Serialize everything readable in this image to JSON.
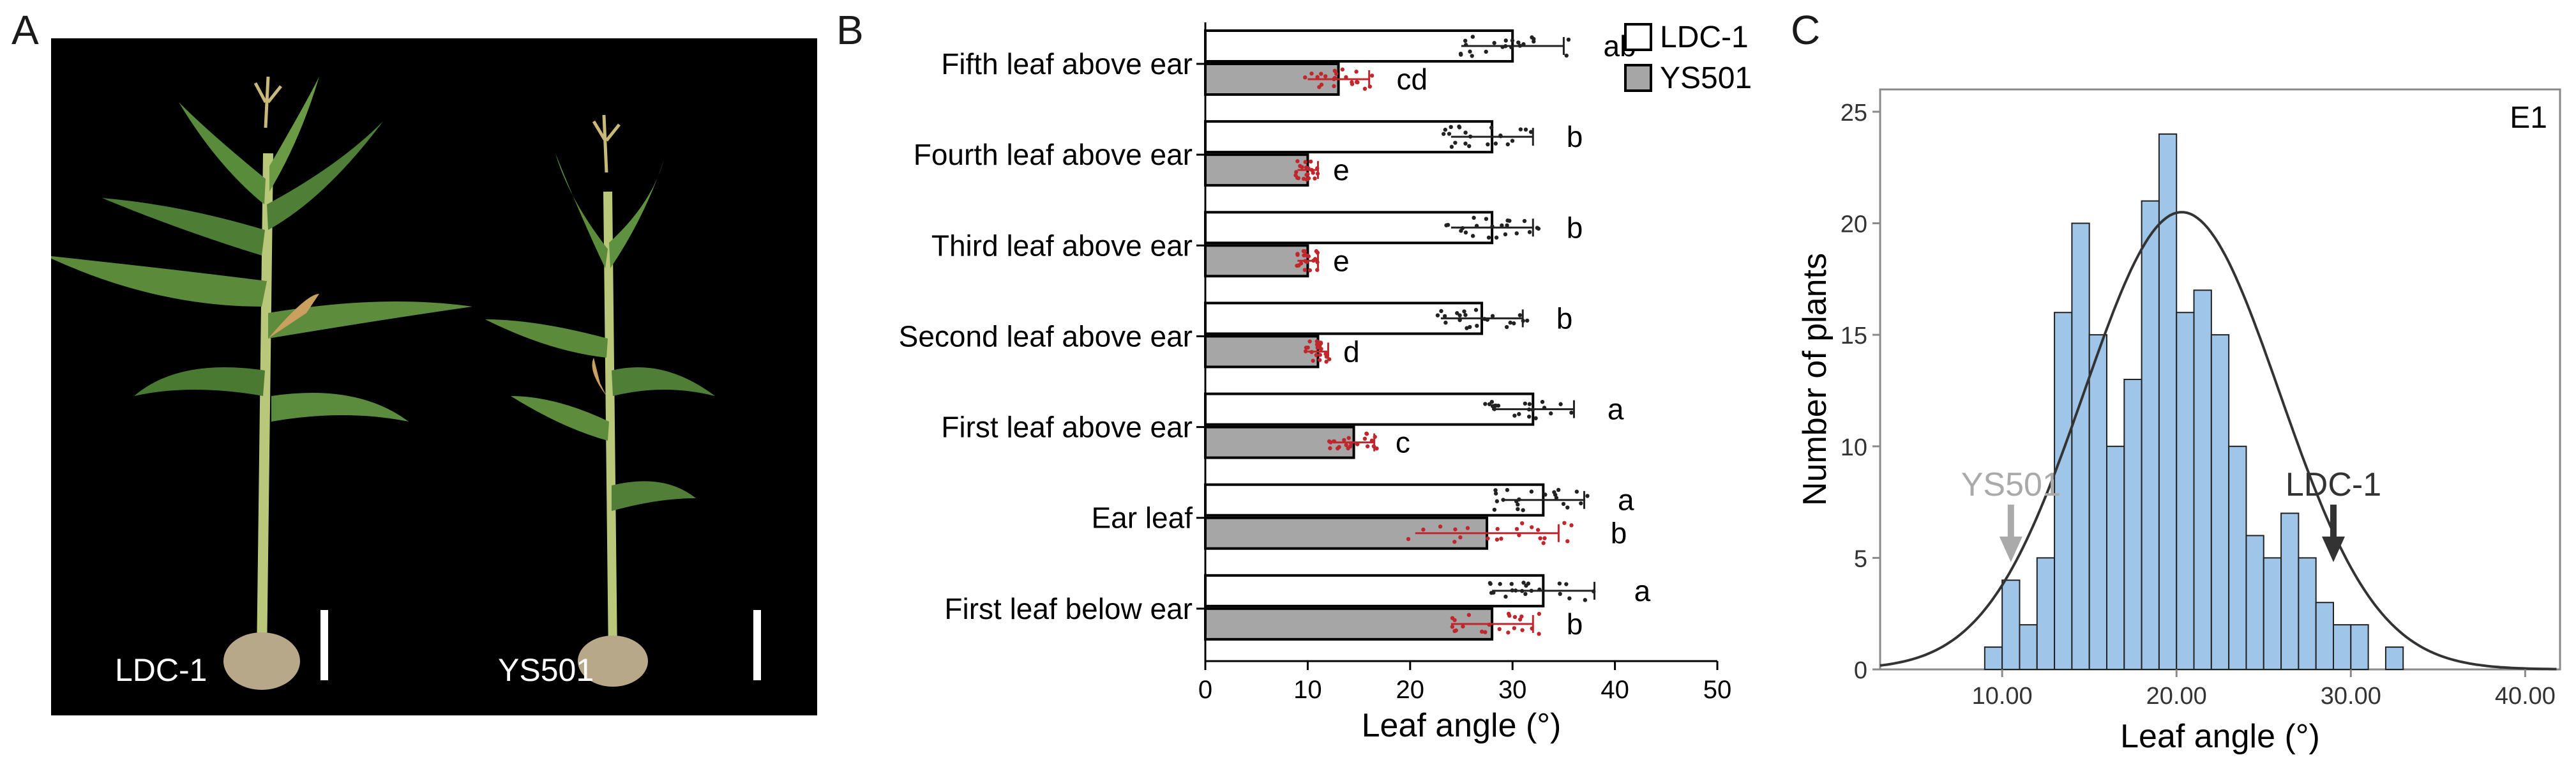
{
  "panels": {
    "a": {
      "letter": "A",
      "label_left": "LDC-1",
      "label_right": "YS501"
    },
    "b": {
      "letter": "B"
    },
    "c": {
      "letter": "C"
    }
  },
  "chart_data": [
    {
      "type": "bar",
      "orientation": "horizontal",
      "panel": "B",
      "categories": [
        "Fifth leaf above ear",
        "Fourth leaf above ear",
        "Third leaf above ear",
        "Second leaf above ear",
        "First leaf above ear",
        "Ear leaf",
        "First leaf below ear"
      ],
      "series": [
        {
          "name": "LDC-1",
          "values": [
            30,
            28,
            28,
            27,
            32,
            33,
            33
          ],
          "errors": [
            5,
            4,
            4,
            4,
            4,
            4,
            5
          ],
          "letters": [
            "ab",
            "b",
            "b",
            "b",
            "a",
            "a",
            "a"
          ],
          "color": "#ffffff"
        },
        {
          "name": "YS501",
          "values": [
            13,
            10,
            10,
            11,
            14.5,
            27.5,
            28
          ],
          "errors": [
            3,
            1,
            1,
            1,
            2,
            7,
            4
          ],
          "letters": [
            "cd",
            "e",
            "e",
            "d",
            "c",
            "b",
            "b"
          ],
          "color": "#a6a6a6"
        }
      ],
      "xlabel": "Leaf angle (°)",
      "xlim": [
        0,
        50
      ],
      "xticks": [
        "0",
        "10",
        "20",
        "30",
        "40",
        "50"
      ],
      "dot_colors": {
        "LDC-1": "#222222",
        "YS501": "#c0262c"
      },
      "legend": "top-right"
    },
    {
      "type": "bar",
      "subtype": "histogram",
      "panel": "C",
      "bin_start": 9.0,
      "bin_width": 1.0,
      "values": [
        1,
        4,
        2,
        5,
        16,
        20,
        15,
        10,
        13,
        21,
        24,
        16,
        17,
        15,
        10,
        6,
        5,
        7,
        5,
        3,
        2,
        2,
        0,
        1
      ],
      "normal_curve": {
        "mean": 20.3,
        "sd": 5.6,
        "peak": 20.5
      },
      "xlabel": "Leaf angle (°)",
      "ylabel": "Number of plants",
      "xlim": [
        3,
        42
      ],
      "ylim": [
        0,
        26
      ],
      "xticks": [
        "10.00",
        "20.00",
        "30.00",
        "40.00"
      ],
      "yticks": [
        "0",
        "5",
        "10",
        "15",
        "20",
        "25"
      ],
      "environment": "E1",
      "annotations": [
        {
          "text": "YS501",
          "x": 10.5,
          "color": "#aaaaaa"
        },
        {
          "text": "LDC-1",
          "x": 29.0,
          "color": "#333333"
        }
      ],
      "bar_color": "#9fc5e8"
    }
  ]
}
